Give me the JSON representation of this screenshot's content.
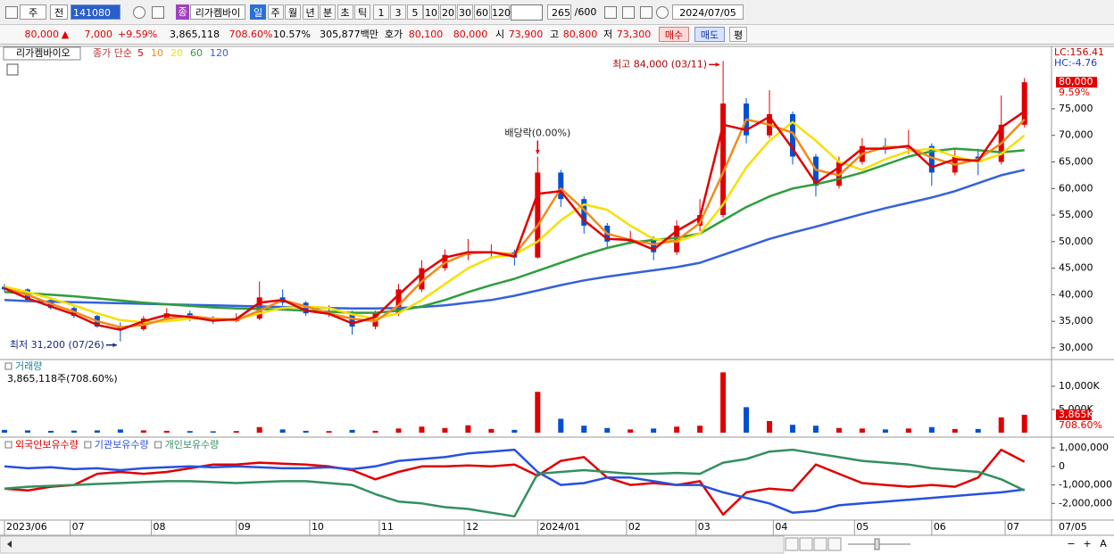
{
  "toolbar": {
    "market": "주",
    "scope": "전",
    "code": "141080",
    "badge": "종",
    "name": "리가켐바이",
    "periods": [
      "일",
      "주",
      "월",
      "년",
      "분",
      "초",
      "틱"
    ],
    "intervals": [
      "1",
      "3",
      "5",
      "10",
      "20",
      "30",
      "60",
      "120"
    ],
    "count": "265",
    "max": "/600",
    "date": "2024/07/05"
  },
  "quote": {
    "price": "80,000",
    "arrow": "▲",
    "change": "7,000",
    "rate": "+9.59%",
    "volume": "3,865,118",
    "volume_rate": "708.60%",
    "turnover": "10.57%",
    "amount": "305,877백만",
    "ask_label": "호가",
    "ask": "80,100",
    "bid": "80,000",
    "open_label": "시",
    "open": "73,900",
    "high_label": "고",
    "high": "80,800",
    "low_label": "저",
    "low": "73,300",
    "buy": "매수",
    "sell": "매도",
    "avg": "평"
  },
  "controls": [
    "−",
    "+",
    "A"
  ],
  "chart_data": [
    {
      "type": "candlestick",
      "name": "리가켐바이오",
      "indicator": "종가 단순",
      "lc": "LC:156.41",
      "hc": "HC:-4.76",
      "x": [
        0,
        6,
        12,
        18,
        24,
        30,
        36,
        42,
        48,
        54,
        60,
        66,
        72,
        78,
        84,
        90,
        96,
        102,
        108,
        114,
        120,
        126,
        132,
        138,
        144,
        150,
        156,
        162,
        168,
        174,
        180,
        186,
        192,
        198,
        204,
        210,
        216,
        222,
        228,
        234,
        240,
        246,
        252,
        258,
        264
      ],
      "open": [
        41500,
        41000,
        39000,
        37500,
        36000,
        34000,
        33500,
        35500,
        36500,
        35500,
        35000,
        35500,
        39500,
        38500,
        36500,
        36500,
        34000,
        36500,
        41000,
        45000,
        47500,
        48000,
        48000,
        47000,
        63000,
        58000,
        53000,
        50000,
        50500,
        48000,
        53000,
        55000,
        76000,
        70000,
        74000,
        66000,
        60500,
        65000,
        68000,
        67500,
        68000,
        63000,
        66000,
        65000,
        72000
      ],
      "high": [
        42000,
        41200,
        39500,
        38000,
        36200,
        34800,
        36000,
        37500,
        37000,
        36000,
        36500,
        42500,
        41000,
        38800,
        38000,
        37000,
        37000,
        42000,
        46500,
        48500,
        50500,
        49500,
        48500,
        66000,
        63500,
        58500,
        53500,
        52000,
        51000,
        54000,
        58000,
        84000,
        77000,
        78500,
        74500,
        66500,
        66000,
        69500,
        69500,
        71000,
        68500,
        67500,
        67500,
        77500,
        80800
      ],
      "low": [
        40500,
        38800,
        37200,
        35600,
        33800,
        31200,
        33200,
        35000,
        35000,
        34500,
        34800,
        35200,
        38000,
        36000,
        35800,
        32500,
        33500,
        36000,
        40500,
        44500,
        46500,
        47000,
        45500,
        46800,
        56500,
        51500,
        49000,
        49500,
        46500,
        47500,
        52000,
        54500,
        68500,
        69500,
        64500,
        58500,
        60000,
        64500,
        66500,
        66500,
        60500,
        62500,
        62500,
        64500,
        71500
      ],
      "close": [
        41000,
        39000,
        37500,
        36000,
        34000,
        33500,
        35500,
        36500,
        35500,
        35000,
        35500,
        39500,
        38500,
        36500,
        36500,
        34000,
        36500,
        41000,
        45000,
        47500,
        48000,
        48000,
        47000,
        63000,
        58000,
        53000,
        50000,
        50500,
        48000,
        53000,
        55000,
        76000,
        70000,
        74000,
        66000,
        60500,
        65000,
        68000,
        67500,
        68000,
        63000,
        66000,
        65000,
        72000,
        80000
      ],
      "up_color": "#e00000",
      "down_color": "#0050d0",
      "series": [
        {
          "name": "5",
          "color": "#e00000",
          "values": [
            41200,
            39300,
            37800,
            36300,
            34300,
            33400,
            35000,
            36200,
            35800,
            35100,
            35400,
            38500,
            39000,
            37000,
            36400,
            34600,
            35800,
            40000,
            44000,
            47000,
            48000,
            48000,
            47200,
            59000,
            59500,
            54000,
            50500,
            50300,
            48500,
            52000,
            54500,
            72000,
            71000,
            73500,
            67500,
            61000,
            64000,
            67500,
            67500,
            68000,
            64000,
            65500,
            65200,
            71500,
            74500
          ]
        },
        {
          "name": "10",
          "color": "#f08a1c",
          "values": [
            41200,
            40000,
            38300,
            36800,
            35000,
            33900,
            34300,
            35500,
            36000,
            35500,
            35200,
            37000,
            39000,
            37800,
            36500,
            35500,
            35000,
            38000,
            42500,
            46000,
            47800,
            48000,
            47600,
            53000,
            60000,
            56000,
            51500,
            50300,
            49500,
            50200,
            53500,
            63000,
            73000,
            72000,
            70500,
            63500,
            62500,
            66500,
            67800,
            67800,
            65800,
            64500,
            65500,
            68500,
            73000
          ]
        },
        {
          "name": "20",
          "color": "#f5e000",
          "values": [
            41500,
            40500,
            39300,
            38000,
            36500,
            35200,
            34800,
            35000,
            35500,
            35500,
            35300,
            36500,
            37500,
            37800,
            37500,
            36300,
            35500,
            36500,
            39000,
            42000,
            45000,
            47000,
            47600,
            50000,
            54000,
            57000,
            56000,
            53000,
            50500,
            50000,
            51500,
            57000,
            64000,
            69000,
            72500,
            69000,
            65000,
            63500,
            65500,
            67000,
            67500,
            66000,
            65000,
            66500,
            70000
          ]
        },
        {
          "name": "60",
          "color": "#2e9e3e",
          "values": [
            40500,
            40300,
            40000,
            39700,
            39300,
            38900,
            38500,
            38200,
            37900,
            37600,
            37400,
            37300,
            37200,
            37000,
            36800,
            36600,
            36600,
            37000,
            37800,
            39000,
            40500,
            41800,
            43000,
            44500,
            46000,
            47500,
            48800,
            49800,
            50300,
            50700,
            51500,
            54000,
            56500,
            58500,
            60000,
            60800,
            61800,
            63000,
            64500,
            66000,
            67000,
            67500,
            67200,
            66800,
            67200
          ]
        },
        {
          "name": "120",
          "color": "#3462dc",
          "values": [
            39000,
            38800,
            38700,
            38600,
            38500,
            38400,
            38300,
            38200,
            38100,
            38000,
            37900,
            37800,
            37700,
            37600,
            37500,
            37400,
            37400,
            37500,
            37700,
            38000,
            38500,
            39000,
            39800,
            40800,
            41800,
            42700,
            43400,
            44000,
            44600,
            45200,
            46000,
            47500,
            49000,
            50500,
            51700,
            52800,
            54000,
            55200,
            56300,
            57300,
            58300,
            59500,
            61000,
            62500,
            63500
          ]
        }
      ],
      "xlim": [
        0,
        271
      ],
      "ylim": [
        27800,
        86750
      ],
      "yticks": [
        {
          "value": 30000,
          "label": "30,000"
        },
        {
          "value": 35000,
          "label": "35,000"
        },
        {
          "value": 40000,
          "label": "40,000"
        },
        {
          "value": 45000,
          "label": "45,000"
        },
        {
          "value": 50000,
          "label": "50,000"
        },
        {
          "value": 55000,
          "label": "55,000"
        },
        {
          "value": 60000,
          "label": "60,000"
        },
        {
          "value": 65000,
          "label": "65,000"
        },
        {
          "value": 70000,
          "label": "70,000"
        },
        {
          "value": 75000,
          "label": "75,000"
        }
      ],
      "annotations": [
        {
          "text": "최고 84,000 (03/11)",
          "x": 186,
          "y": 84000,
          "pointer": "right",
          "color": "#b00000"
        },
        {
          "text": "최저 31,200 (07/26)",
          "x": 30,
          "y": 31200,
          "pointer": "right",
          "color": "#102a80"
        },
        {
          "text": "배당락(0.00%)",
          "x": 138,
          "y": 66000,
          "pointer": "down",
          "color": "#222222"
        }
      ],
      "last_label": "80,000",
      "last_change": "9.59%"
    },
    {
      "type": "bar",
      "title": "거래량",
      "subtitle": "3,865,118주(708.60%)",
      "x": [
        0,
        6,
        12,
        18,
        24,
        30,
        36,
        42,
        48,
        54,
        60,
        66,
        72,
        78,
        84,
        90,
        96,
        102,
        108,
        114,
        120,
        126,
        132,
        138,
        144,
        150,
        156,
        162,
        168,
        174,
        180,
        186,
        192,
        198,
        204,
        210,
        216,
        222,
        228,
        234,
        240,
        246,
        252,
        258,
        264
      ],
      "values": [
        600,
        500,
        400,
        450,
        500,
        700,
        500,
        400,
        350,
        300,
        350,
        1200,
        700,
        400,
        350,
        600,
        400,
        900,
        1300,
        1000,
        1600,
        800,
        600,
        8800,
        3000,
        1500,
        1000,
        700,
        900,
        1300,
        1500,
        13000,
        5500,
        2500,
        1700,
        1500,
        1000,
        900,
        700,
        900,
        1200,
        800,
        800,
        3300,
        3865
      ],
      "xlim": [
        0,
        271
      ],
      "ylim": [
        -960,
        15770
      ],
      "yticks": [
        {
          "value": 5000,
          "label": "5,000K"
        },
        {
          "value": 10000,
          "label": "10,000K"
        }
      ],
      "last_label": "3,865K",
      "last_change": "708.60%"
    },
    {
      "type": "line",
      "x": [
        0,
        6,
        12,
        18,
        24,
        30,
        36,
        42,
        48,
        54,
        60,
        66,
        72,
        78,
        84,
        90,
        96,
        102,
        108,
        114,
        120,
        126,
        132,
        138,
        144,
        150,
        156,
        162,
        168,
        174,
        180,
        186,
        192,
        198,
        204,
        210,
        216,
        222,
        228,
        234,
        240,
        246,
        252,
        258,
        264
      ],
      "series": [
        {
          "name": "외국인보유수량",
          "color": "#e00000",
          "values": [
            -1200000,
            -1300000,
            -1100000,
            -1000000,
            -400000,
            -300000,
            -400000,
            -300000,
            -100000,
            100000,
            100000,
            200000,
            150000,
            100000,
            0,
            -200000,
            -700000,
            -300000,
            0,
            0,
            50000,
            0,
            100000,
            -500000,
            300000,
            500000,
            -600000,
            -1000000,
            -900000,
            -1000000,
            -800000,
            -2600000,
            -1400000,
            -1200000,
            -1300000,
            100000,
            -400000,
            -900000,
            -1000000,
            -1100000,
            -1000000,
            -1100000,
            -600000,
            900000,
            250000
          ]
        },
        {
          "name": "기관보유수량",
          "color": "#2850e0",
          "values": [
            0,
            -100000,
            -50000,
            -150000,
            -100000,
            -200000,
            -100000,
            -50000,
            0,
            -50000,
            0,
            -50000,
            -100000,
            -100000,
            -50000,
            -150000,
            0,
            300000,
            400000,
            500000,
            700000,
            800000,
            900000,
            -300000,
            -1000000,
            -900000,
            -600000,
            -600000,
            -800000,
            -1000000,
            -1000000,
            -1400000,
            -1700000,
            -2000000,
            -2500000,
            -2400000,
            -2100000,
            -2000000,
            -1900000,
            -1800000,
            -1700000,
            -1600000,
            -1500000,
            -1400000,
            -1250000
          ]
        },
        {
          "name": "개인보유수량",
          "color": "#32905e",
          "values": [
            -1200000,
            -1100000,
            -1050000,
            -1000000,
            -950000,
            -900000,
            -850000,
            -800000,
            -800000,
            -850000,
            -900000,
            -850000,
            -800000,
            -800000,
            -900000,
            -1000000,
            -1500000,
            -1900000,
            -2000000,
            -2200000,
            -2300000,
            -2500000,
            -2700000,
            -400000,
            -300000,
            -200000,
            -300000,
            -400000,
            -400000,
            -350000,
            -400000,
            200000,
            400000,
            800000,
            900000,
            700000,
            500000,
            300000,
            200000,
            100000,
            -100000,
            -200000,
            -300000,
            -700000,
            -1300000
          ]
        }
      ],
      "xlim": [
        0,
        271
      ],
      "ylim": [
        -2900000,
        1580000
      ],
      "yticks": [
        {
          "value": 1000000,
          "label": "1,000,000"
        },
        0,
        {
          "value": -1000000,
          "label": "-1,000,000"
        },
        {
          "value": -2000000,
          "label": "-2,000,000"
        }
      ],
      "xticks": [
        {
          "value": 0,
          "label": "2023/06"
        },
        {
          "value": 17,
          "label": "07"
        },
        {
          "value": 38,
          "label": "08"
        },
        {
          "value": 60,
          "label": "09"
        },
        {
          "value": 79,
          "label": "10"
        },
        {
          "value": 97,
          "label": "11"
        },
        {
          "value": 119,
          "label": "12"
        },
        {
          "value": 138,
          "label": "2024/01"
        },
        {
          "value": 161,
          "label": "02"
        },
        {
          "value": 179,
          "label": "03"
        },
        {
          "value": 199,
          "label": "04"
        },
        {
          "value": 220,
          "label": "05"
        },
        {
          "value": 240,
          "label": "06"
        },
        {
          "value": 259,
          "label": "07"
        }
      ],
      "x_end_label": "07/05"
    }
  ]
}
